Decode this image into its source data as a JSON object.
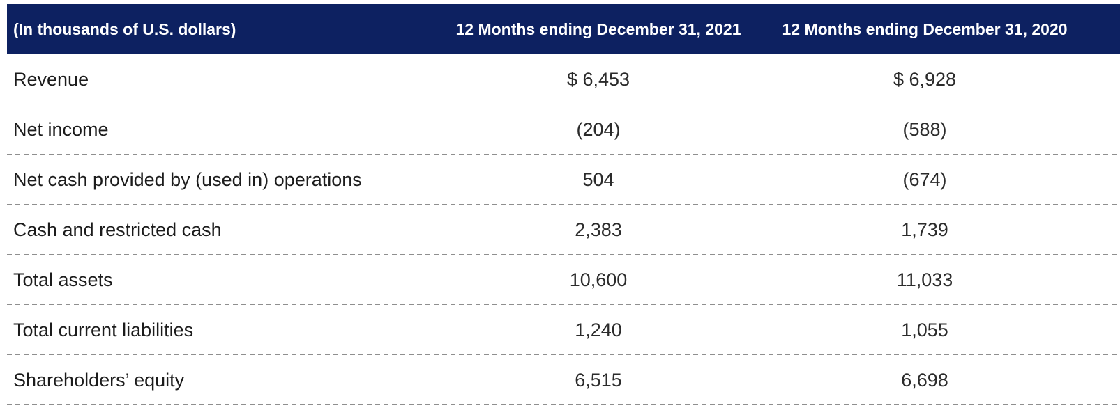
{
  "header": {
    "unit_label": "(In thousands of U.S. dollars)",
    "col_2021": "12 Months ending December 31, 2021",
    "col_2020": "12 Months ending December 31, 2020"
  },
  "rows": [
    {
      "label": "Revenue",
      "v2021": "$ 6,453",
      "v2020": "$ 6,928"
    },
    {
      "label": "Net income",
      "v2021": "(204)",
      "v2020": "(588)"
    },
    {
      "label": "Net cash provided by (used in) operations",
      "v2021": "504",
      "v2020": "(674)"
    },
    {
      "label": "Cash and restricted cash",
      "v2021": "2,383",
      "v2020": "1,739"
    },
    {
      "label": "Total assets",
      "v2021": "10,600",
      "v2020": "11,033"
    },
    {
      "label": "Total current liabilities",
      "v2021": "1,240",
      "v2020": "1,055"
    },
    {
      "label": "Shareholders’ equity",
      "v2021": "6,515",
      "v2020": "6,698"
    }
  ],
  "colors": {
    "header_bg": "#0d2161",
    "header_text": "#ffffff",
    "body_text": "#212121",
    "divider": "#8f8f8f",
    "background": "#ffffff"
  },
  "chart_data": {
    "type": "table",
    "title": "Financial summary (In thousands of U.S. dollars)",
    "columns": [
      "(In thousands of U.S. dollars)",
      "12 Months ending December 31, 2021",
      "12 Months ending December 31, 2020"
    ],
    "rows": [
      [
        "Revenue",
        "$ 6,453",
        "$ 6,928"
      ],
      [
        "Net income",
        "(204)",
        "(588)"
      ],
      [
        "Net cash provided by (used in) operations",
        "504",
        "(674)"
      ],
      [
        "Cash and restricted cash",
        "2,383",
        "1,739"
      ],
      [
        "Total assets",
        "10,600",
        "11,033"
      ],
      [
        "Total current liabilities",
        "1,240",
        "1,055"
      ],
      [
        "Shareholders’ equity",
        "6,515",
        "6,698"
      ]
    ],
    "series": [
      {
        "name": "12 Months ending December 31, 2021",
        "values": [
          6453,
          -204,
          504,
          2383,
          10600,
          1240,
          6515
        ]
      },
      {
        "name": "12 Months ending December 31, 2020",
        "values": [
          6928,
          -588,
          -674,
          1739,
          11033,
          1055,
          6698
        ]
      }
    ],
    "categories": [
      "Revenue",
      "Net income",
      "Net cash provided by (used in) operations",
      "Cash and restricted cash",
      "Total assets",
      "Total current liabilities",
      "Shareholders’ equity"
    ]
  }
}
